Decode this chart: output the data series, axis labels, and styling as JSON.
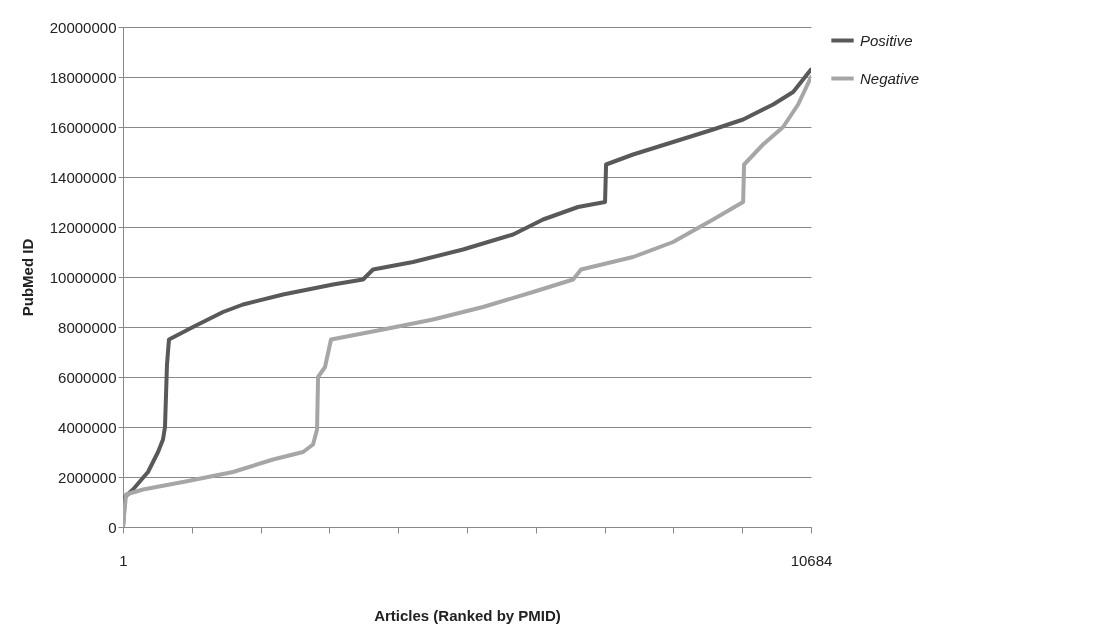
{
  "chart_data": {
    "type": "line",
    "xlabel": "Articles (Ranked by PMID)",
    "ylabel": "PubMed ID",
    "xlim": [
      1,
      10684
    ],
    "xticks": [
      1,
      {
        "value": 1069.3,
        "label": null
      },
      {
        "value": 2137.6,
        "label": null
      },
      {
        "value": 3205.9,
        "label": null
      },
      {
        "value": 4274.2,
        "label": null
      },
      {
        "value": 5342.5,
        "label": null
      },
      {
        "value": 6410.8,
        "label": null
      },
      {
        "value": 7479.1,
        "label": null
      },
      {
        "value": 8547.4,
        "label": null
      },
      {
        "value": 9615.7,
        "label": null
      },
      10684
    ],
    "ylim": [
      0,
      20000000
    ],
    "yticks": [
      0,
      2000000,
      4000000,
      6000000,
      8000000,
      10000000,
      12000000,
      14000000,
      16000000,
      18000000,
      20000000
    ],
    "grid": "y",
    "legend": "right",
    "marker": "none",
    "line_style": "solid",
    "series": [
      {
        "name": "Positive",
        "color": "#595959",
        "x": [
          1,
          32,
          156,
          389,
          545,
          622,
          653,
          684,
          715,
          1088,
          1554,
          1865,
          2486,
          3262,
          3728,
          3884,
          4505,
          5281,
          6058,
          6524,
          7067,
          7486,
          7502,
          7921,
          8543,
          9164,
          9630,
          10096,
          10407,
          10684
        ],
        "values": [
          0,
          1200000,
          1500000,
          2200000,
          3000000,
          3500000,
          4000000,
          6500000,
          7500000,
          8000000,
          8600000,
          8900000,
          9300000,
          9700000,
          9900000,
          10300000,
          10600000,
          11100000,
          11700000,
          12300000,
          12800000,
          13000000,
          14500000,
          14900000,
          15400000,
          15900000,
          16300000,
          16900000,
          17400000,
          18300000
        ]
      },
      {
        "name": "Negative",
        "color": "#a6a6a6",
        "x": [
          1,
          48,
          312,
          933,
          1709,
          2331,
          2797,
          2952,
          3014,
          3030,
          3138,
          3231,
          4039,
          4815,
          5592,
          6368,
          6990,
          7114,
          7921,
          8543,
          9164,
          9630,
          9645,
          9940,
          10251,
          10484,
          10684
        ],
        "values": [
          0,
          1300000,
          1500000,
          1800000,
          2200000,
          2700000,
          3000000,
          3300000,
          3900000,
          6000000,
          6400000,
          7500000,
          7900000,
          8300000,
          8800000,
          9400000,
          9900000,
          10300000,
          10800000,
          11400000,
          12300000,
          13000000,
          14500000,
          15300000,
          16000000,
          16900000,
          18000000
        ]
      }
    ]
  }
}
